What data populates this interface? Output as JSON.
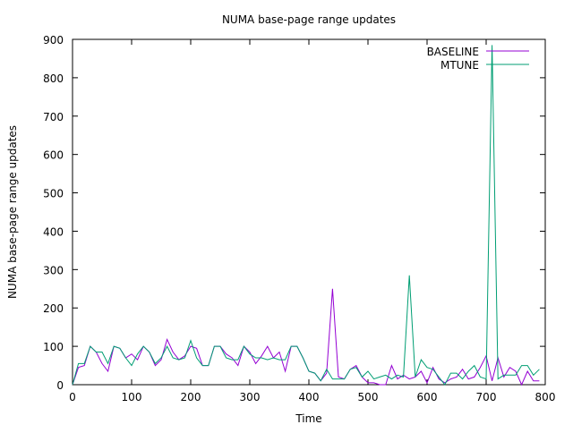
{
  "chart_data": {
    "type": "line",
    "title": "NUMA base-page range updates",
    "xlabel": "Time",
    "ylabel": "NUMA base-page range updates",
    "xlim": [
      0,
      800
    ],
    "ylim": [
      0,
      900
    ],
    "xticks": [
      0,
      100,
      200,
      300,
      400,
      500,
      600,
      700,
      800
    ],
    "yticks": [
      0,
      100,
      200,
      300,
      400,
      500,
      600,
      700,
      800,
      900
    ],
    "grid": false,
    "legend_position": "top-right",
    "x": [
      0,
      10,
      20,
      30,
      40,
      50,
      60,
      70,
      80,
      90,
      100,
      110,
      120,
      130,
      140,
      150,
      160,
      170,
      180,
      190,
      200,
      210,
      220,
      230,
      240,
      250,
      260,
      270,
      280,
      290,
      300,
      310,
      320,
      330,
      340,
      350,
      360,
      370,
      380,
      390,
      400,
      410,
      420,
      430,
      440,
      450,
      460,
      470,
      480,
      490,
      500,
      510,
      520,
      530,
      540,
      550,
      560,
      570,
      580,
      590,
      600,
      610,
      620,
      630,
      640,
      650,
      660,
      670,
      680,
      690,
      700,
      710,
      720,
      730,
      740,
      750,
      760,
      770,
      780,
      790
    ],
    "series": [
      {
        "name": "BASELINE",
        "color": "#9400d3",
        "values": [
          0,
          45,
          50,
          100,
          85,
          55,
          35,
          100,
          95,
          70,
          80,
          65,
          100,
          85,
          50,
          65,
          118,
          85,
          65,
          75,
          100,
          95,
          50,
          50,
          100,
          100,
          80,
          70,
          50,
          100,
          85,
          55,
          75,
          100,
          70,
          85,
          35,
          100,
          100,
          70,
          35,
          30,
          10,
          30,
          250,
          20,
          15,
          40,
          50,
          20,
          5,
          5,
          0,
          0,
          50,
          15,
          25,
          15,
          20,
          35,
          5,
          45,
          15,
          5,
          15,
          20,
          40,
          15,
          20,
          45,
          75,
          10,
          70,
          20,
          45,
          35,
          0,
          35,
          10,
          10
        ]
      },
      {
        "name": "MTUNE",
        "color": "#009e73",
        "values": [
          0,
          55,
          55,
          100,
          85,
          85,
          55,
          100,
          95,
          70,
          50,
          80,
          100,
          85,
          55,
          70,
          100,
          70,
          65,
          70,
          115,
          70,
          50,
          50,
          100,
          100,
          70,
          65,
          65,
          100,
          80,
          70,
          70,
          65,
          70,
          65,
          65,
          100,
          100,
          70,
          35,
          30,
          10,
          40,
          15,
          15,
          15,
          40,
          45,
          20,
          35,
          15,
          20,
          25,
          15,
          25,
          20,
          285,
          20,
          65,
          45,
          40,
          20,
          0,
          30,
          30,
          15,
          35,
          50,
          20,
          15,
          885,
          15,
          25,
          25,
          25,
          50,
          50,
          25,
          40
        ]
      }
    ]
  }
}
